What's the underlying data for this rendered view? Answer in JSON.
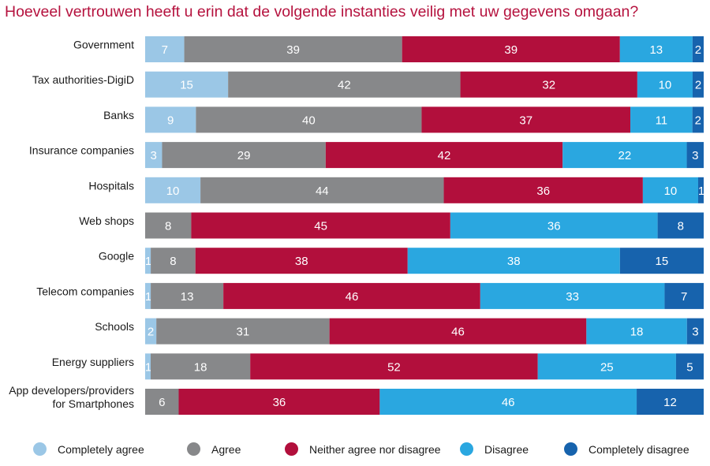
{
  "title": "Hoeveel vertrouwen heeft u erin dat de volgende instanties veilig met uw gegevens omgaan?",
  "chart_data": {
    "type": "bar",
    "orientation": "horizontal",
    "stacked": true,
    "title": "Hoeveel vertrouwen heeft u erin dat de volgende instanties veilig met uw gegevens omgaan?",
    "xlim": [
      0,
      100
    ],
    "legend_position": "bottom",
    "categories": [
      [
        "Government"
      ],
      [
        "Tax authorities-DigiD"
      ],
      [
        "Banks"
      ],
      [
        "Insurance companies"
      ],
      [
        "Hospitals"
      ],
      [
        "Web shops"
      ],
      [
        "Google"
      ],
      [
        "Telecom companies"
      ],
      [
        "Schools"
      ],
      [
        "Energy suppliers"
      ],
      [
        "App developers/providers",
        "for Smartphones"
      ]
    ],
    "series": [
      {
        "name": "Completely agree",
        "color": "#9bc7e6",
        "values": [
          7,
          15,
          9,
          3,
          10,
          0,
          1,
          1,
          2,
          1,
          0
        ]
      },
      {
        "name": "Agree",
        "color": "#87888a",
        "values": [
          39,
          42,
          40,
          29,
          44,
          8,
          8,
          13,
          31,
          18,
          6
        ]
      },
      {
        "name": "Neither agree nor disagree",
        "color": "#b20f3c",
        "values": [
          39,
          32,
          37,
          42,
          36,
          45,
          38,
          46,
          46,
          52,
          36
        ]
      },
      {
        "name": "Disagree",
        "color": "#2aa7e0",
        "values": [
          13,
          10,
          11,
          22,
          10,
          36,
          38,
          33,
          18,
          25,
          46
        ]
      },
      {
        "name": "Completely disagree",
        "color": "#1763ad",
        "values": [
          2,
          2,
          2,
          3,
          1,
          8,
          15,
          7,
          3,
          5,
          12
        ]
      }
    ]
  }
}
